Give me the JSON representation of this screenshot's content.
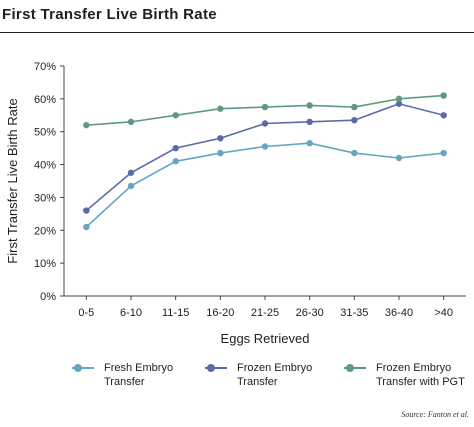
{
  "title": "First Transfer Live Birth Rate",
  "source": "Source: Fanton et al.",
  "chart_data": {
    "type": "line",
    "title": "First Transfer Live Birth Rate",
    "xlabel": "Eggs Retrieved",
    "ylabel": "First Transfer Live Birth Rate",
    "categories": [
      "0-5",
      "6-10",
      "11-15",
      "16-20",
      "21-25",
      "26-30",
      "31-35",
      "36-40",
      ">40"
    ],
    "yticks": [
      "0%",
      "10%",
      "20%",
      "30%",
      "40%",
      "50%",
      "60%",
      "70%"
    ],
    "ylim": [
      0,
      70
    ],
    "grid": false,
    "legend_position": "bottom",
    "series": [
      {
        "name": "Fresh Embryo Transfer",
        "color": "#64a6c0",
        "values": [
          21,
          33.5,
          41,
          43.5,
          45.5,
          46.5,
          43.5,
          42,
          43.5
        ]
      },
      {
        "name": "Frozen Embryo Transfer",
        "color": "#5b6ba8",
        "values": [
          26,
          37.5,
          45,
          48,
          52.5,
          53,
          53.5,
          58.5,
          55
        ]
      },
      {
        "name": "Frozen Embryo Transfer with PGT",
        "color": "#5e9b7d",
        "values": [
          52,
          53,
          55,
          57,
          57.5,
          58,
          57.5,
          60,
          61
        ]
      }
    ]
  },
  "legend": [
    {
      "label": "Fresh Embryo\nTransfer",
      "color": "#64a6c0"
    },
    {
      "label": "Frozen Embryo\nTransfer",
      "color": "#5b6ba8"
    },
    {
      "label": "Frozen Embryo\nTransfer with PGT",
      "color": "#5e9b7d"
    }
  ]
}
